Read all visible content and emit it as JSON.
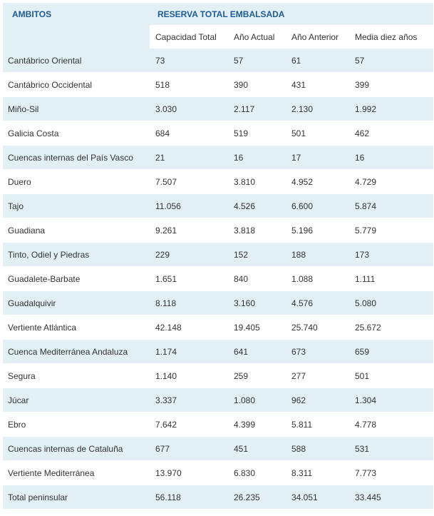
{
  "table": {
    "header_group": "AMBITOS",
    "header_reserve": "RESERVA TOTAL EMBALSADA",
    "columns": [
      "Capacidad Total",
      "Año Actual",
      "Año Anterior",
      "Media diez años"
    ],
    "rows": [
      [
        "Cantábrico Oriental",
        "73",
        "57",
        "61",
        "57"
      ],
      [
        "Cantábrico Occidental",
        "518",
        "390",
        "431",
        "399"
      ],
      [
        "Miño-Sil",
        "3.030",
        "2.117",
        "2.130",
        "1.992"
      ],
      [
        "Galicia Costa",
        "684",
        "519",
        "501",
        "462"
      ],
      [
        "Cuencas internas del País Vasco",
        "21",
        "16",
        "17",
        "16"
      ],
      [
        "Duero",
        "7.507",
        "3.810",
        "4.952",
        "4.729"
      ],
      [
        "Tajo",
        "11.056",
        "4.526",
        "6.600",
        "5.874"
      ],
      [
        "Guadiana",
        "9.261",
        "3.818",
        "5.196",
        "5.779"
      ],
      [
        "Tinto, Odiel y Piedras",
        "229",
        "152",
        "188",
        "173"
      ],
      [
        "Guadalete-Barbate",
        "1.651",
        "840",
        "1.088",
        "1.111"
      ],
      [
        "Guadalquivir",
        "8.118",
        "3.160",
        "4.576",
        "5.080"
      ],
      [
        "Vertiente Atlántica",
        "42.148",
        "19.405",
        "25.740",
        "25.672"
      ],
      [
        "Cuenca Mediterránea Andaluza",
        "1.174",
        "641",
        "673",
        "659"
      ],
      [
        "Segura",
        "1.140",
        "259",
        "277",
        "501"
      ],
      [
        "Júcar",
        "3.337",
        "1.080",
        "962",
        "1.304"
      ],
      [
        "Ebro",
        "7.642",
        "4.399",
        "5.811",
        "4.778"
      ],
      [
        "Cuencas internas de Cataluña",
        "677",
        "451",
        "588",
        "531"
      ],
      [
        "Vertiente Mediterránea",
        "13.970",
        "6.830",
        "8.311",
        "7.773"
      ],
      [
        "Total peninsular",
        "56.118",
        "26.235",
        "34.051",
        "33.445"
      ]
    ]
  },
  "colors": {
    "header_text": "#1d5b92",
    "stripe": "#e2f0f6",
    "text": "#333333"
  }
}
